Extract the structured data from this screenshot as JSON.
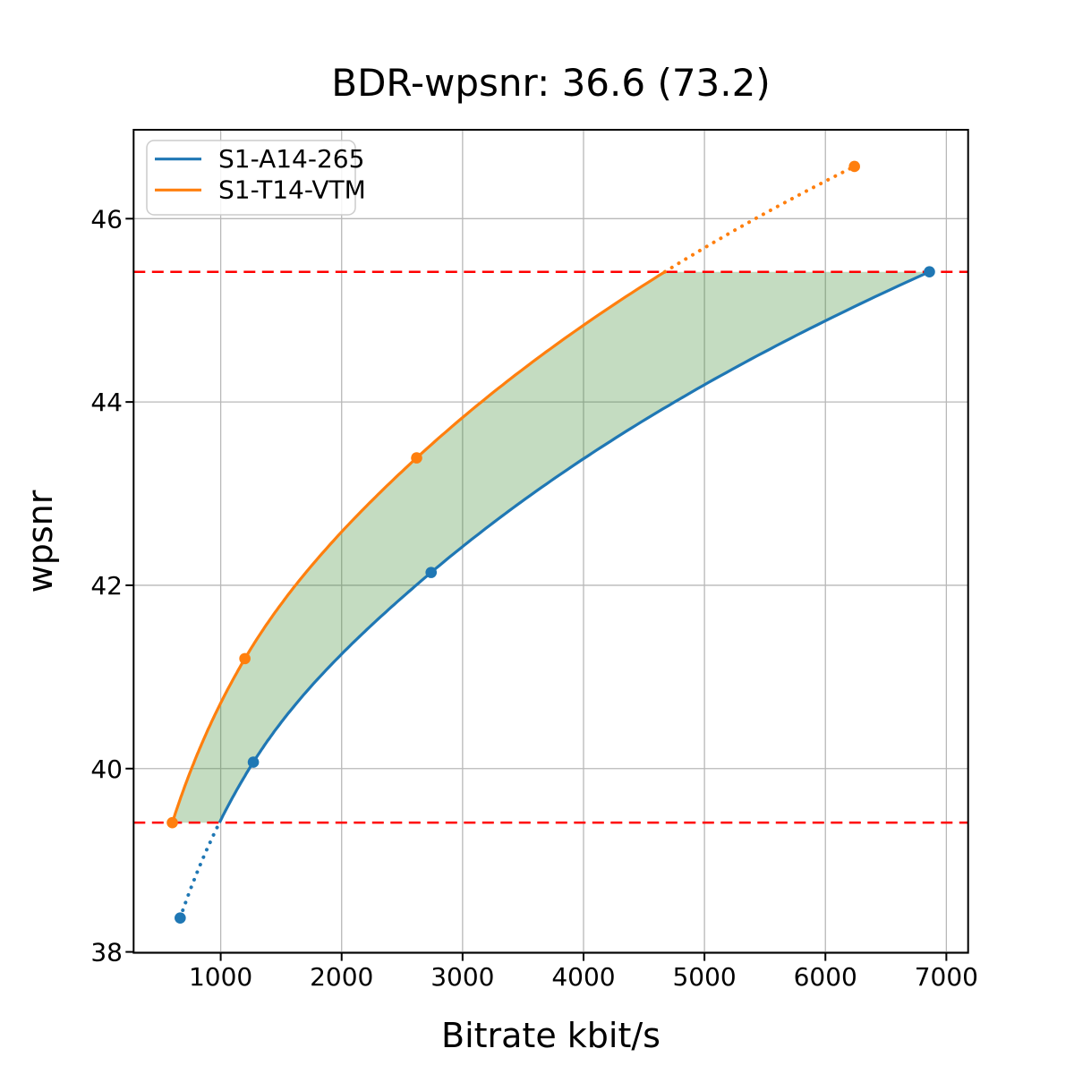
{
  "figure": {
    "background": "#ffffff"
  },
  "chart_data": {
    "type": "line",
    "title": "BDR-wpsnr: 36.6 (73.2)",
    "xlabel": "Bitrate kbit/s",
    "ylabel": "wpsnr",
    "xlim": [
      280,
      7180
    ],
    "ylim": [
      37.99,
      46.97
    ],
    "xticks": [
      1000,
      2000,
      3000,
      4000,
      5000,
      6000,
      7000
    ],
    "yticks": [
      38,
      40,
      42,
      44,
      46
    ],
    "grid": true,
    "grid_color": "#b8b8b8",
    "legend": {
      "position": "upper-left",
      "entries": [
        "S1-A14-265",
        "S1-T14-VTM"
      ]
    },
    "series": [
      {
        "name": "S1-A14-265",
        "color": "#1f77b4",
        "marker": "circle",
        "x": [
          665,
          1270,
          2740,
          6860
        ],
        "y": [
          38.37,
          40.07,
          42.14,
          45.42
        ]
      },
      {
        "name": "S1-T14-VTM",
        "color": "#ff7f0e",
        "marker": "circle",
        "x": [
          600,
          1200,
          2620,
          6240
        ],
        "y": [
          39.41,
          41.2,
          43.39,
          46.57
        ]
      }
    ],
    "quality_overlap_lines": {
      "color": "#ff0000",
      "style": "dashed",
      "low": 39.41,
      "high": 45.42
    },
    "shaded_region": {
      "fill": "rgba(58,138,50,0.30)",
      "description": "area between the two rate-distortion curves inside the overlapping quality range"
    },
    "curve_style_note": "curves solid inside overlap range, dotted outside"
  }
}
